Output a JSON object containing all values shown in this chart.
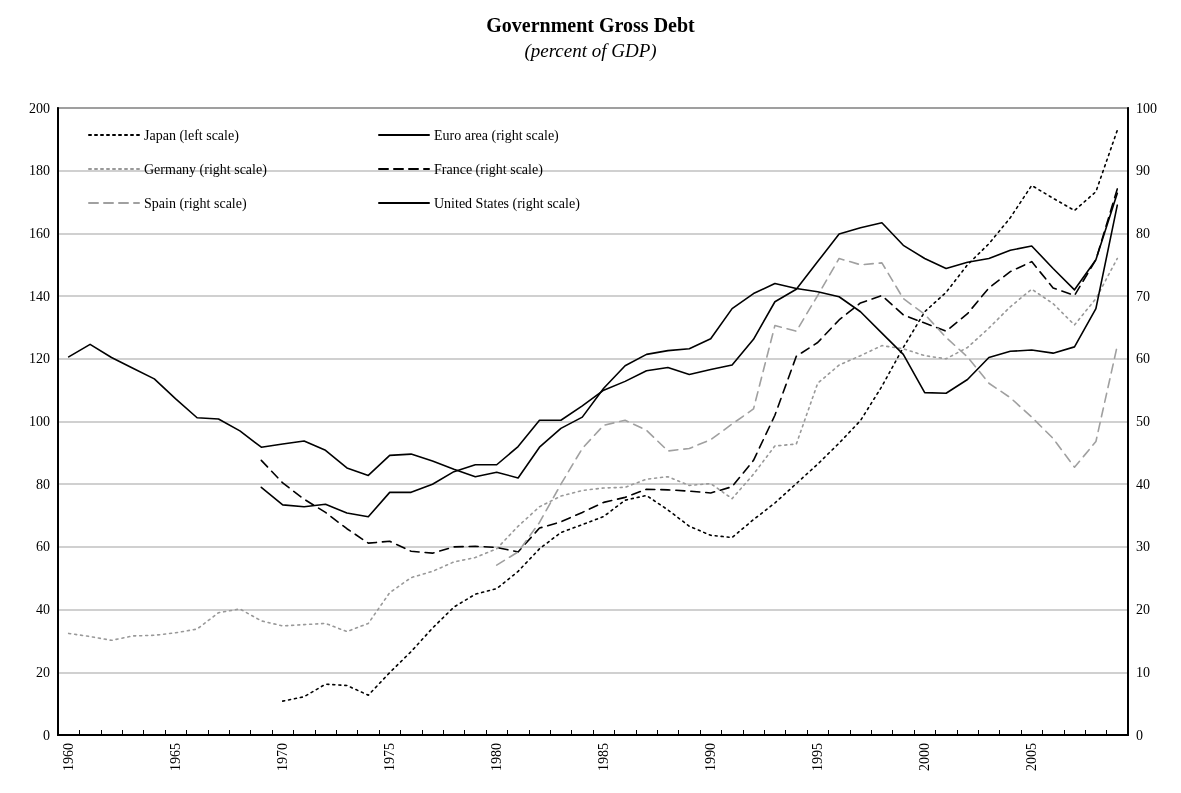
{
  "chart_data": {
    "type": "line",
    "title": "Government Gross Debt",
    "subtitle": "(percent of GDP)",
    "categories": [
      "1960",
      null,
      null,
      null,
      null,
      "1965",
      null,
      null,
      null,
      null,
      "1970",
      null,
      null,
      null,
      null,
      "1975",
      null,
      null,
      null,
      null,
      "1980",
      null,
      null,
      null,
      null,
      "1985",
      null,
      null,
      null,
      null,
      "1990",
      null,
      null,
      null,
      null,
      "1995",
      null,
      null,
      null,
      null,
      "2000",
      null,
      null,
      null,
      null,
      "2005",
      null,
      null,
      null,
      null
    ],
    "ylim": [
      0,
      200
    ],
    "yticks": [
      0,
      20,
      40,
      60,
      80,
      100,
      120,
      140,
      160,
      180,
      200
    ],
    "y2lim": [
      0,
      100
    ],
    "y2ticks": [
      0,
      10,
      20,
      30,
      40,
      50,
      60,
      70,
      80,
      90,
      100
    ],
    "grid": "y",
    "legend": "top left",
    "marker": "none",
    "series": [
      {
        "name": "Japan (left scale)",
        "color": "#000000",
        "line_style": "dotted",
        "values": [
          null,
          null,
          null,
          null,
          null,
          null,
          null,
          null,
          null,
          null,
          10.8,
          12.2,
          16.2,
          15.8,
          12.7,
          19.9,
          26.6,
          34.1,
          40.8,
          44.9,
          46.7,
          52.2,
          59.4,
          64.6,
          67.1,
          69.7,
          74.9,
          76.4,
          71.8,
          66.6,
          63.7,
          63.0,
          68.7,
          74.0,
          80.2,
          86.4,
          93.1,
          100.3,
          111.2,
          123.6,
          135.0,
          141.2,
          150.0,
          156.7,
          165.0,
          175.3,
          171.2,
          167.3,
          173.3,
          192.9
        ]
      },
      {
        "name": "Euro area (right scale)",
        "color": "#000000",
        "line_style": "solid",
        "axis": "y2",
        "values": [
          null,
          null,
          null,
          null,
          null,
          null,
          null,
          null,
          null,
          39.5,
          36.7,
          36.4,
          36.8,
          35.4,
          34.8,
          38.7,
          38.7,
          40.0,
          42.0,
          43.1,
          43.1,
          46.0,
          50.2,
          50.2,
          52.5,
          55.0,
          56.4,
          58.1,
          58.6,
          57.5,
          58.3,
          59.0,
          63.1,
          69.1,
          71.1,
          75.5,
          79.9,
          80.9,
          81.7,
          78.1,
          76.0,
          74.4,
          75.4,
          76.0,
          77.3,
          78.0,
          74.4,
          71.0,
          75.8,
          86.4
        ]
      },
      {
        "name": "Germany (right scale)",
        "color": "#999999",
        "line_style": "dotted",
        "axis": "y2",
        "values": [
          16.2,
          15.7,
          15.1,
          15.8,
          15.9,
          16.3,
          16.9,
          19.5,
          20.1,
          18.2,
          17.4,
          17.6,
          17.8,
          16.5,
          17.8,
          22.7,
          25.1,
          26.1,
          27.6,
          28.3,
          29.7,
          33.3,
          36.4,
          38.1,
          39.0,
          39.4,
          39.5,
          40.8,
          41.2,
          39.8,
          40.1,
          37.7,
          41.6,
          46.1,
          46.4,
          56.1,
          59.0,
          60.5,
          62.1,
          61.6,
          60.5,
          60.0,
          61.8,
          64.9,
          68.3,
          71.1,
          68.8,
          65.4,
          69.6,
          76.0
        ]
      },
      {
        "name": "France (right scale)",
        "color": "#000000",
        "line_style": "dashed",
        "axis": "y2",
        "values": [
          null,
          null,
          null,
          null,
          null,
          null,
          null,
          null,
          null,
          43.8,
          40.2,
          37.6,
          35.5,
          32.9,
          30.6,
          30.9,
          29.3,
          29.0,
          30.0,
          30.1,
          29.9,
          29.2,
          33.0,
          34.0,
          35.5,
          37.1,
          37.9,
          39.2,
          39.1,
          38.9,
          38.6,
          39.6,
          43.8,
          51.0,
          60.4,
          62.6,
          66.2,
          68.9,
          70.1,
          67.0,
          65.7,
          64.4,
          67.2,
          71.3,
          73.9,
          75.5,
          71.3,
          70.1,
          75.8,
          87.1
        ]
      },
      {
        "name": "Spain (right scale)",
        "color": "#a0a0a0",
        "line_style": "dashed",
        "axis": "y2",
        "values": [
          null,
          null,
          null,
          null,
          null,
          null,
          null,
          null,
          null,
          null,
          null,
          null,
          null,
          null,
          null,
          null,
          null,
          null,
          null,
          null,
          27.1,
          29.2,
          33.9,
          40.0,
          45.7,
          49.4,
          50.2,
          48.6,
          45.3,
          45.7,
          47.1,
          49.6,
          52.0,
          65.3,
          64.4,
          70.1,
          76.0,
          75.0,
          75.3,
          69.6,
          67.1,
          63.4,
          60.3,
          56.1,
          53.8,
          50.7,
          47.3,
          42.7,
          46.8,
          62.1
        ]
      },
      {
        "name": "United States (right scale)",
        "color": "#000000",
        "line_style": "solid",
        "axis": "y2",
        "values": [
          60.3,
          62.3,
          60.2,
          58.5,
          56.8,
          53.6,
          50.6,
          50.4,
          48.5,
          45.9,
          46.4,
          46.9,
          45.4,
          42.6,
          41.4,
          44.6,
          44.8,
          43.7,
          42.4,
          41.2,
          41.9,
          41.0,
          45.9,
          48.9,
          50.7,
          55.3,
          58.9,
          60.7,
          61.3,
          61.6,
          63.2,
          68.0,
          70.4,
          72.0,
          71.2,
          70.7,
          69.9,
          67.5,
          64.1,
          60.7,
          54.6,
          54.5,
          56.7,
          60.2,
          61.2,
          61.4,
          60.9,
          61.9,
          68.0,
          84.5
        ]
      }
    ]
  }
}
